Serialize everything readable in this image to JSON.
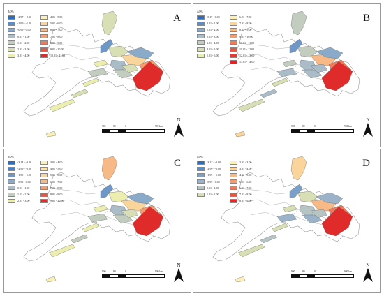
{
  "legend_title": "ΔQ%",
  "unit": "km",
  "north_label": "N",
  "scale_ticks": [
    "900",
    "80",
    "0",
    "900 km"
  ],
  "boundary_color": "#9a9a9a",
  "panels": [
    {
      "letter": "A",
      "col1": [
        {
          "label": "-2.97 - -2.00",
          "color": "#2e6fb7"
        },
        {
          "label": "-1.99 - -1.00",
          "color": "#5c8dc4"
        },
        {
          "label": "-0.99 - 0.00",
          "color": "#8aaac9"
        },
        {
          "label": "0.01 - 1.00",
          "color": "#a9bcc7"
        },
        {
          "label": "1.01 - 2.00",
          "color": "#c3cdbf"
        },
        {
          "label": "2.01 - 3.00",
          "color": "#d9dfb5"
        },
        {
          "label": "3.01 - 4.00",
          "color": "#eceeb0"
        }
      ],
      "col2": [
        {
          "label": "4.01 - 5.00",
          "color": "#fbf0b8"
        },
        {
          "label": "5.01 - 6.00",
          "color": "#f9d59b"
        },
        {
          "label": "6.01 - 7.00",
          "color": "#f7b985"
        },
        {
          "label": "7.01 - 8.00",
          "color": "#f49c70"
        },
        {
          "label": "8.01 - 9.00",
          "color": "#f07a59"
        },
        {
          "label": "9.01 - 10.00",
          "color": "#ea5443"
        },
        {
          "label": "10.01 - 11.00",
          "color": "#e02b2b"
        }
      ],
      "fills": [
        "#d9dfb5",
        "#6e96c6",
        "#d9dfb5",
        "#f9d59b",
        "#f49c70",
        "#8aaac9",
        "#e02b2b",
        "#a9bcc7",
        "#c3cdbf",
        "#eceeb0",
        "#d9dfb5",
        "#eceeb0",
        "#c3cdbf",
        "#d9dfb5",
        "#eceeb0",
        "#fbf0b8"
      ]
    },
    {
      "letter": "B",
      "col1": [
        {
          "label": "-0.19 - 0.00",
          "color": "#2e6fb7"
        },
        {
          "label": "0.01 - 1.00",
          "color": "#5c8dc4"
        },
        {
          "label": "1.01 - 2.00",
          "color": "#8aaac9"
        },
        {
          "label": "2.01 - 3.00",
          "color": "#a9bcc7"
        },
        {
          "label": "3.01 - 4.00",
          "color": "#c3cdbf"
        },
        {
          "label": "4.01 - 5.00",
          "color": "#d9dfb5"
        },
        {
          "label": "5.01 - 6.00",
          "color": "#eceeb0"
        }
      ],
      "col2": [
        {
          "label": "6.01 - 7.00",
          "color": "#fbf0b8"
        },
        {
          "label": "7.01 - 8.00",
          "color": "#f9d59b"
        },
        {
          "label": "8.01 - 9.00",
          "color": "#f7b985"
        },
        {
          "label": "9.01 - 10.00",
          "color": "#f49c70"
        },
        {
          "label": "10.01 - 11.00",
          "color": "#f07a59"
        },
        {
          "label": "11.01 - 12.00",
          "color": "#ea5443"
        },
        {
          "label": "12.01 - 13.00",
          "color": "#e33a38"
        },
        {
          "label": "13.01 - 14.00",
          "color": "#d9262a"
        }
      ],
      "fills": [
        "#c3cdbf",
        "#6e96c6",
        "#c3cdbf",
        "#f7b985",
        "#f07a59",
        "#8aaac9",
        "#e02b2b",
        "#a9bcc7",
        "#a9bcc7",
        "#d9dfb5",
        "#a9bcc7",
        "#d9dfb5",
        "#a9bcc7",
        "#a9bcc7",
        "#c3cdbf",
        "#f9d59b"
      ]
    },
    {
      "letter": "C",
      "col1": [
        {
          "label": "-3.14 - -3.00",
          "color": "#2e6fb7"
        },
        {
          "label": "-2.99 - -2.00",
          "color": "#4d80c0"
        },
        {
          "label": "-1.99 - -1.00",
          "color": "#6e96c6"
        },
        {
          "label": "-0.99 - 0.00",
          "color": "#8aaac9"
        },
        {
          "label": "0.01 - 1.00",
          "color": "#a9bcc7"
        },
        {
          "label": "1.01 - 2.00",
          "color": "#c3cdbf"
        },
        {
          "label": "2.01 - 3.00",
          "color": "#eceeb0"
        }
      ],
      "col2": [
        {
          "label": "3.01 - 4.00",
          "color": "#fbf0b8"
        },
        {
          "label": "4.01 - 5.00",
          "color": "#fbe3a8"
        },
        {
          "label": "5.01 - 6.00",
          "color": "#f9d59b"
        },
        {
          "label": "6.01 - 7.00",
          "color": "#f7b985"
        },
        {
          "label": "7.01 - 8.00",
          "color": "#f49c70"
        },
        {
          "label": "8.01 - 9.00",
          "color": "#ea5443"
        },
        {
          "label": "9.01 - 10.00",
          "color": "#e02b2b"
        }
      ],
      "fills": [
        "#f7b985",
        "#6e96c6",
        "#eceeb0",
        "#f9d59b",
        "#f49c70",
        "#8aaac9",
        "#e02b2b",
        "#a9bcc7",
        "#c3cdbf",
        "#eceeb0",
        "#c3cdbf",
        "#eceeb0",
        "#c3cdbf",
        "#d9dfb5",
        "#eceeb0",
        "#fbf0b8"
      ]
    },
    {
      "letter": "D",
      "col1": [
        {
          "label": "-3.17 - -3.00",
          "color": "#2e6fb7"
        },
        {
          "label": "-2.99 - -2.00",
          "color": "#5c8dc4"
        },
        {
          "label": "-1.99 - -1.00",
          "color": "#7a9fc8"
        },
        {
          "label": "-0.99 - 0.00",
          "color": "#9bb3c8"
        },
        {
          "label": "0.01 - 1.00",
          "color": "#b6c4c3"
        },
        {
          "label": "1.01 - 2.00",
          "color": "#d9dfb5"
        }
      ],
      "col2": [
        {
          "label": "2.01 - 3.00",
          "color": "#fbf0b8"
        },
        {
          "label": "3.01 - 4.00",
          "color": "#f9d59b"
        },
        {
          "label": "4.01 - 5.00",
          "color": "#f7b985"
        },
        {
          "label": "5.01 - 6.00",
          "color": "#f49c70"
        },
        {
          "label": "6.01 - 7.00",
          "color": "#f07a59"
        },
        {
          "label": "7.01 - 8.00",
          "color": "#ea5443"
        },
        {
          "label": "8.01 - 9.00",
          "color": "#e02b2b"
        }
      ],
      "fills": [
        "#f9d59b",
        "#7a9fc8",
        "#d9dfb5",
        "#f7b985",
        "#f07a59",
        "#9bb3c8",
        "#e02b2b",
        "#b6c4c3",
        "#9bb3c8",
        "#d9dfb5",
        "#b6c4c3",
        "#d9dfb5",
        "#9bb3c8",
        "#b6c4c3",
        "#d9dfb5",
        "#fbf0b8"
      ]
    }
  ]
}
